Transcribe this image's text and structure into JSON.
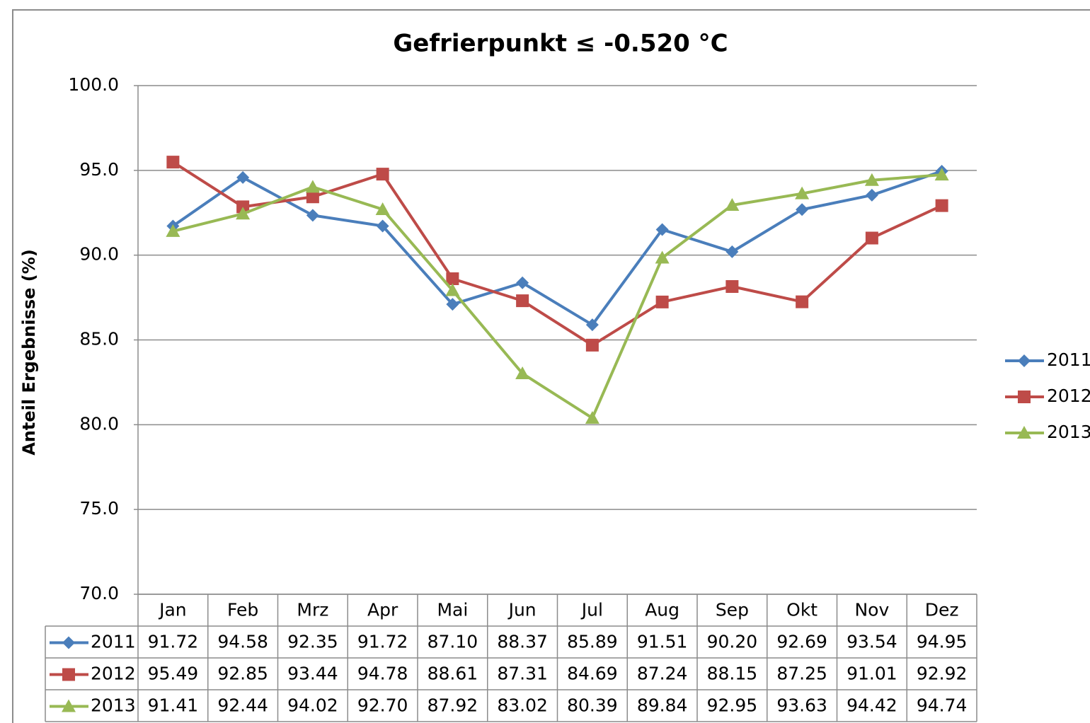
{
  "chart_data": {
    "type": "line",
    "title": "Gefrierpunkt ≤  -0.520 °C",
    "y_label": "Anteil Ergebnisse (%)",
    "categories": [
      "Jan",
      "Feb",
      "Mrz",
      "Apr",
      "Mai",
      "Jun",
      "Jul",
      "Aug",
      "Sep",
      "Okt",
      "Nov",
      "Dez"
    ],
    "series": [
      {
        "name": "2011",
        "color": "#4a7ebb",
        "marker": "diamond",
        "values": [
          91.72,
          94.58,
          92.35,
          91.72,
          87.1,
          88.37,
          85.89,
          91.51,
          90.2,
          92.69,
          93.54,
          94.95
        ],
        "value_labels": [
          "91.72",
          "94.58",
          "92.35",
          "91.72",
          "87.10",
          "88.37",
          "85.89",
          "91.51",
          "90.20",
          "92.69",
          "93.54",
          "94.95"
        ]
      },
      {
        "name": "2012",
        "color": "#be4b48",
        "marker": "square",
        "values": [
          95.49,
          92.85,
          93.44,
          94.78,
          88.61,
          87.31,
          84.69,
          87.24,
          88.15,
          87.25,
          91.01,
          92.92
        ],
        "value_labels": [
          "95.49",
          "92.85",
          "93.44",
          "94.78",
          "88.61",
          "87.31",
          "84.69",
          "87.24",
          "88.15",
          "87.25",
          "91.01",
          "92.92"
        ]
      },
      {
        "name": "2013",
        "color": "#98b954",
        "marker": "triangle",
        "values": [
          91.41,
          92.44,
          94.02,
          92.7,
          87.92,
          83.02,
          80.39,
          89.84,
          92.95,
          93.63,
          94.42,
          94.74
        ],
        "value_labels": [
          "91.41",
          "92.44",
          "94.02",
          "92.70",
          "87.92",
          "83.02",
          "80.39",
          "89.84",
          "92.95",
          "93.63",
          "94.42",
          "94.74"
        ]
      }
    ],
    "ylim": [
      70,
      100
    ],
    "yticks": [
      {
        "value": 70,
        "label": "70.0"
      },
      {
        "value": 75,
        "label": "75.0"
      },
      {
        "value": 80,
        "label": "80.0"
      },
      {
        "value": 85,
        "label": "85.0"
      },
      {
        "value": 90,
        "label": "90.0"
      },
      {
        "value": 95,
        "label": "95.0"
      },
      {
        "value": 100,
        "label": "100.0"
      }
    ],
    "grid": true,
    "legend": "right",
    "data_table": true
  }
}
